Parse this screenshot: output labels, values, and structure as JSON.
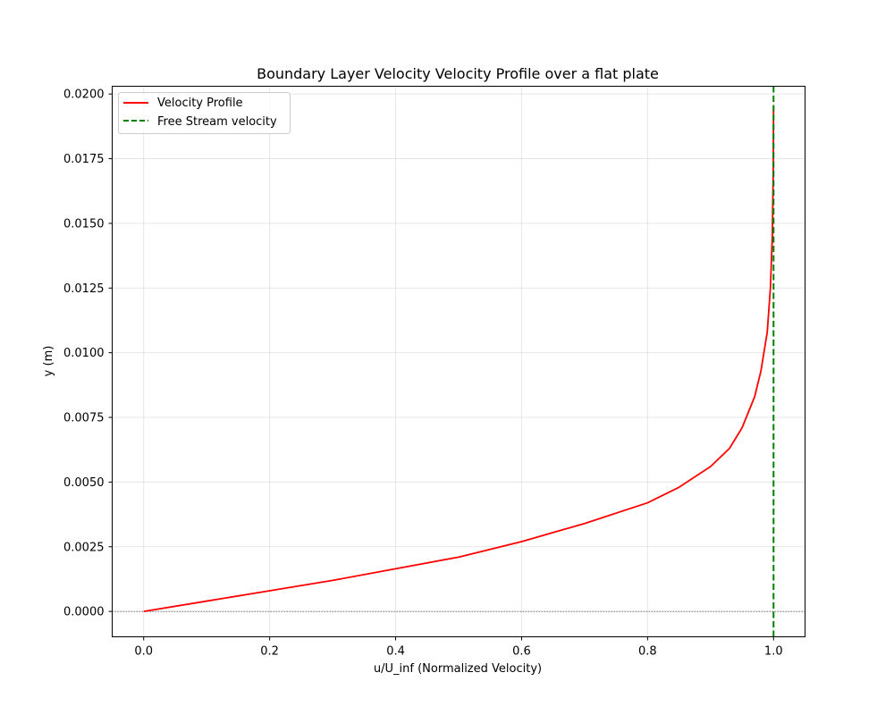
{
  "chart_data": {
    "type": "line",
    "title": "Boundary Layer Velocity Velocity Profile over a flat plate",
    "xlabel": "u/U_inf (Normalized Velocity)",
    "ylabel": "y (m)",
    "xlim": [
      -0.05,
      1.05
    ],
    "ylim": [
      -0.00098,
      0.0203
    ],
    "xticks": [
      0.0,
      0.2,
      0.4,
      0.6,
      0.8,
      1.0
    ],
    "xtick_labels": [
      "0.0",
      "0.2",
      "0.4",
      "0.6",
      "0.8",
      "1.0"
    ],
    "yticks": [
      0.0,
      0.0025,
      0.005,
      0.0075,
      0.01,
      0.0125,
      0.015,
      0.0175,
      0.02
    ],
    "ytick_labels": [
      "0.0000",
      "0.0025",
      "0.0050",
      "0.0075",
      "0.0100",
      "0.0125",
      "0.0150",
      "0.0175",
      "0.0200"
    ],
    "grid": true,
    "legend_position": "top-left",
    "series": [
      {
        "name": "Velocity Profile",
        "color": "#ff0000",
        "style": "solid",
        "points": [
          {
            "x": 0.0,
            "y": 0.0
          },
          {
            "x": 0.1,
            "y": 0.0004
          },
          {
            "x": 0.2,
            "y": 0.0008
          },
          {
            "x": 0.3,
            "y": 0.0012
          },
          {
            "x": 0.4,
            "y": 0.00165
          },
          {
            "x": 0.5,
            "y": 0.0021
          },
          {
            "x": 0.6,
            "y": 0.0027
          },
          {
            "x": 0.7,
            "y": 0.0034
          },
          {
            "x": 0.8,
            "y": 0.0042
          },
          {
            "x": 0.85,
            "y": 0.0048
          },
          {
            "x": 0.9,
            "y": 0.0056
          },
          {
            "x": 0.93,
            "y": 0.0063
          },
          {
            "x": 0.95,
            "y": 0.0071
          },
          {
            "x": 0.97,
            "y": 0.0083
          },
          {
            "x": 0.98,
            "y": 0.0093
          },
          {
            "x": 0.99,
            "y": 0.0108
          },
          {
            "x": 0.995,
            "y": 0.0125
          },
          {
            "x": 0.998,
            "y": 0.0145
          },
          {
            "x": 0.9995,
            "y": 0.017
          },
          {
            "x": 1.0,
            "y": 0.0195
          }
        ]
      },
      {
        "name": "Free Stream velocity",
        "color": "#008000",
        "style": "dashed",
        "vertical_line_x": 1.0
      }
    ],
    "reference_lines": [
      {
        "orientation": "horizontal",
        "y": 0.0,
        "color": "#000000",
        "style": "dotted"
      }
    ]
  }
}
